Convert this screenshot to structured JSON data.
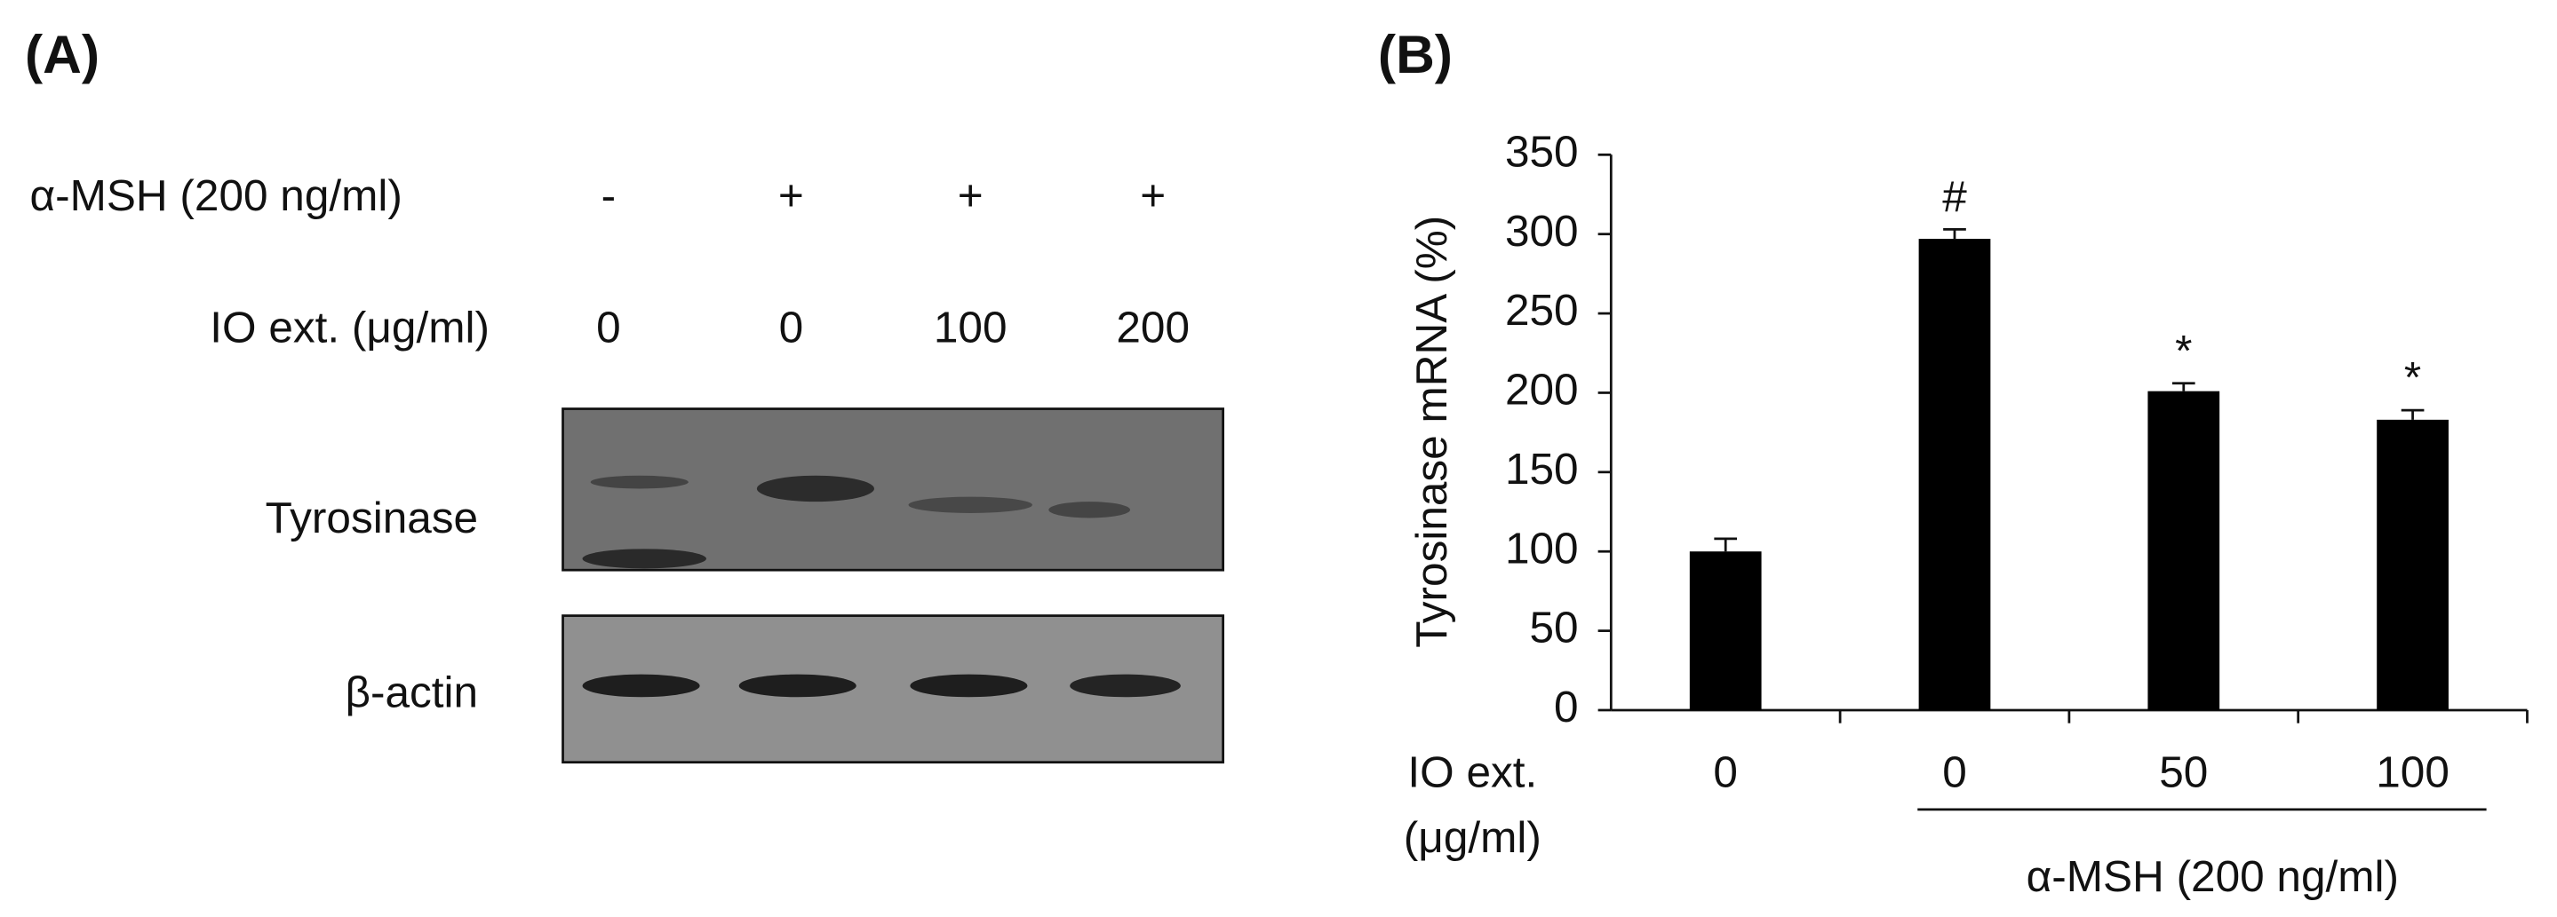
{
  "panel_a": {
    "panel_label": "(A)",
    "rows": [
      {
        "label": "α-MSH (200 ng/ml)",
        "lanes": [
          "-",
          "+",
          "+",
          "+"
        ]
      },
      {
        "label": "IO ext. (μg/ml)",
        "lanes": [
          "0",
          "0",
          "100",
          "200"
        ]
      }
    ],
    "blots": [
      "Tyrosinase",
      "β-actin"
    ]
  },
  "chart_data": {
    "type": "bar",
    "panel_label": "(B)",
    "y_label": "Tyrosinase mRNA (%)",
    "x_label": [
      "IO ext.",
      "(μg/ml)"
    ],
    "group_label": "α-MSH (200 ng/ml)",
    "categories": [
      "0",
      "0",
      "50",
      "100"
    ],
    "values": [
      100,
      297,
      201,
      183
    ],
    "errors": [
      8,
      6,
      5,
      6
    ],
    "annotations": [
      null,
      "#",
      "*",
      "*"
    ],
    "color": "#000000",
    "ylim": [
      0,
      350
    ],
    "yticks": [
      0,
      50,
      100,
      150,
      200,
      250,
      300,
      350
    ]
  }
}
